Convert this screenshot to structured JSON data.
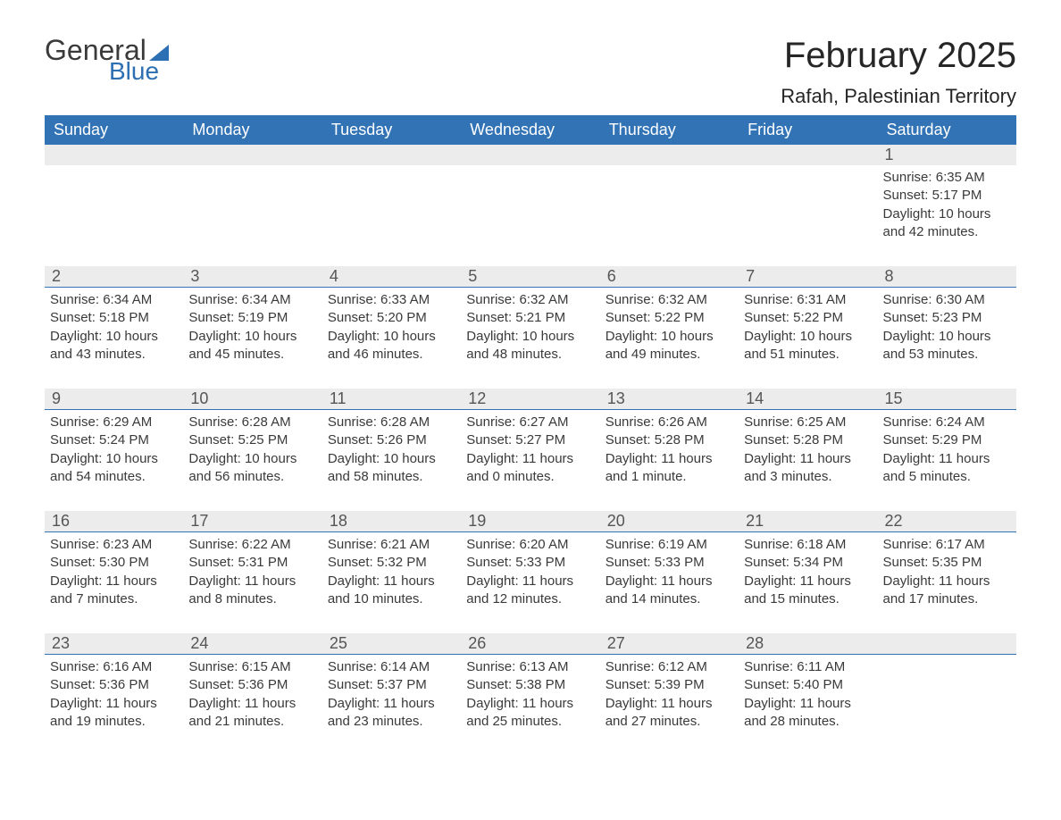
{
  "logo": {
    "general": "General",
    "blue": "Blue"
  },
  "header": {
    "month_title": "February 2025",
    "location": "Rafah, Palestinian Territory"
  },
  "colors": {
    "header_bg": "#3273b6",
    "header_text": "#ffffff",
    "daynum_bg": "#ececec",
    "week_border": "#3273b6",
    "body_text": "#3a3a3a",
    "logo_blue": "#2d6fb3"
  },
  "day_headers": [
    "Sunday",
    "Monday",
    "Tuesday",
    "Wednesday",
    "Thursday",
    "Friday",
    "Saturday"
  ],
  "weeks": [
    [
      null,
      null,
      null,
      null,
      null,
      null,
      {
        "d": "1",
        "sunrise": "6:35 AM",
        "sunset": "5:17 PM",
        "daylight": "10 hours and 42 minutes."
      }
    ],
    [
      {
        "d": "2",
        "sunrise": "6:34 AM",
        "sunset": "5:18 PM",
        "daylight": "10 hours and 43 minutes."
      },
      {
        "d": "3",
        "sunrise": "6:34 AM",
        "sunset": "5:19 PM",
        "daylight": "10 hours and 45 minutes."
      },
      {
        "d": "4",
        "sunrise": "6:33 AM",
        "sunset": "5:20 PM",
        "daylight": "10 hours and 46 minutes."
      },
      {
        "d": "5",
        "sunrise": "6:32 AM",
        "sunset": "5:21 PM",
        "daylight": "10 hours and 48 minutes."
      },
      {
        "d": "6",
        "sunrise": "6:32 AM",
        "sunset": "5:22 PM",
        "daylight": "10 hours and 49 minutes."
      },
      {
        "d": "7",
        "sunrise": "6:31 AM",
        "sunset": "5:22 PM",
        "daylight": "10 hours and 51 minutes."
      },
      {
        "d": "8",
        "sunrise": "6:30 AM",
        "sunset": "5:23 PM",
        "daylight": "10 hours and 53 minutes."
      }
    ],
    [
      {
        "d": "9",
        "sunrise": "6:29 AM",
        "sunset": "5:24 PM",
        "daylight": "10 hours and 54 minutes."
      },
      {
        "d": "10",
        "sunrise": "6:28 AM",
        "sunset": "5:25 PM",
        "daylight": "10 hours and 56 minutes."
      },
      {
        "d": "11",
        "sunrise": "6:28 AM",
        "sunset": "5:26 PM",
        "daylight": "10 hours and 58 minutes."
      },
      {
        "d": "12",
        "sunrise": "6:27 AM",
        "sunset": "5:27 PM",
        "daylight": "11 hours and 0 minutes."
      },
      {
        "d": "13",
        "sunrise": "6:26 AM",
        "sunset": "5:28 PM",
        "daylight": "11 hours and 1 minute."
      },
      {
        "d": "14",
        "sunrise": "6:25 AM",
        "sunset": "5:28 PM",
        "daylight": "11 hours and 3 minutes."
      },
      {
        "d": "15",
        "sunrise": "6:24 AM",
        "sunset": "5:29 PM",
        "daylight": "11 hours and 5 minutes."
      }
    ],
    [
      {
        "d": "16",
        "sunrise": "6:23 AM",
        "sunset": "5:30 PM",
        "daylight": "11 hours and 7 minutes."
      },
      {
        "d": "17",
        "sunrise": "6:22 AM",
        "sunset": "5:31 PM",
        "daylight": "11 hours and 8 minutes."
      },
      {
        "d": "18",
        "sunrise": "6:21 AM",
        "sunset": "5:32 PM",
        "daylight": "11 hours and 10 minutes."
      },
      {
        "d": "19",
        "sunrise": "6:20 AM",
        "sunset": "5:33 PM",
        "daylight": "11 hours and 12 minutes."
      },
      {
        "d": "20",
        "sunrise": "6:19 AM",
        "sunset": "5:33 PM",
        "daylight": "11 hours and 14 minutes."
      },
      {
        "d": "21",
        "sunrise": "6:18 AM",
        "sunset": "5:34 PM",
        "daylight": "11 hours and 15 minutes."
      },
      {
        "d": "22",
        "sunrise": "6:17 AM",
        "sunset": "5:35 PM",
        "daylight": "11 hours and 17 minutes."
      }
    ],
    [
      {
        "d": "23",
        "sunrise": "6:16 AM",
        "sunset": "5:36 PM",
        "daylight": "11 hours and 19 minutes."
      },
      {
        "d": "24",
        "sunrise": "6:15 AM",
        "sunset": "5:36 PM",
        "daylight": "11 hours and 21 minutes."
      },
      {
        "d": "25",
        "sunrise": "6:14 AM",
        "sunset": "5:37 PM",
        "daylight": "11 hours and 23 minutes."
      },
      {
        "d": "26",
        "sunrise": "6:13 AM",
        "sunset": "5:38 PM",
        "daylight": "11 hours and 25 minutes."
      },
      {
        "d": "27",
        "sunrise": "6:12 AM",
        "sunset": "5:39 PM",
        "daylight": "11 hours and 27 minutes."
      },
      {
        "d": "28",
        "sunrise": "6:11 AM",
        "sunset": "5:40 PM",
        "daylight": "11 hours and 28 minutes."
      },
      null
    ]
  ],
  "labels": {
    "sunrise": "Sunrise: ",
    "sunset": "Sunset: ",
    "daylight": "Daylight: "
  }
}
